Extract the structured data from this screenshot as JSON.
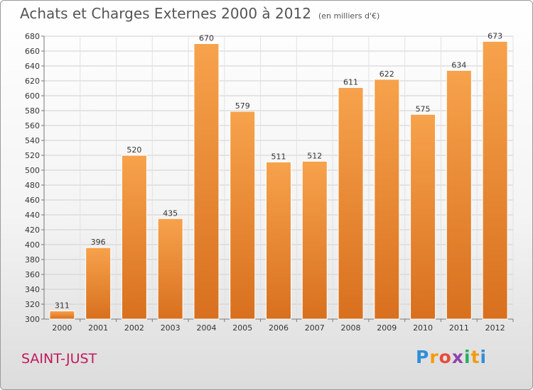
{
  "header": {
    "title": "Achats et Charges Externes 2000 à 2012",
    "subtitle": "(en milliers d'€)"
  },
  "footer": {
    "commune": "SAINT-JUST",
    "logo_letters": [
      "P",
      "r",
      "o",
      "x",
      "i",
      "t",
      "i"
    ],
    "logo_colors": [
      "#2f8fd8",
      "#f39c12",
      "#e74c3c",
      "#8e44ad",
      "#27ae60",
      "#f39c12",
      "#2f8fd8"
    ]
  },
  "chart_data": {
    "type": "bar",
    "categories": [
      "2000",
      "2001",
      "2002",
      "2003",
      "2004",
      "2005",
      "2006",
      "2007",
      "2008",
      "2009",
      "2010",
      "2011",
      "2012"
    ],
    "values": [
      311,
      396,
      520,
      435,
      670,
      579,
      511,
      512,
      611,
      622,
      575,
      634,
      673
    ],
    "data_labels": [
      "311",
      "396",
      "520",
      "435",
      "670",
      "579",
      "511",
      "512",
      "611",
      "622",
      "575",
      "634",
      "673"
    ],
    "ylim": [
      300,
      680
    ],
    "yticks": [
      "300",
      "320",
      "340",
      "360",
      "380",
      "400",
      "420",
      "440",
      "460",
      "480",
      "500",
      "520",
      "540",
      "560",
      "580",
      "600",
      "620",
      "640",
      "660",
      "680"
    ],
    "ytick_values": [
      300,
      320,
      340,
      360,
      380,
      400,
      420,
      440,
      460,
      480,
      500,
      520,
      540,
      560,
      580,
      600,
      620,
      640,
      660,
      680
    ],
    "grid": true,
    "bar_color_light": "#f7a24c",
    "bar_color_dark": "#d8701e"
  }
}
